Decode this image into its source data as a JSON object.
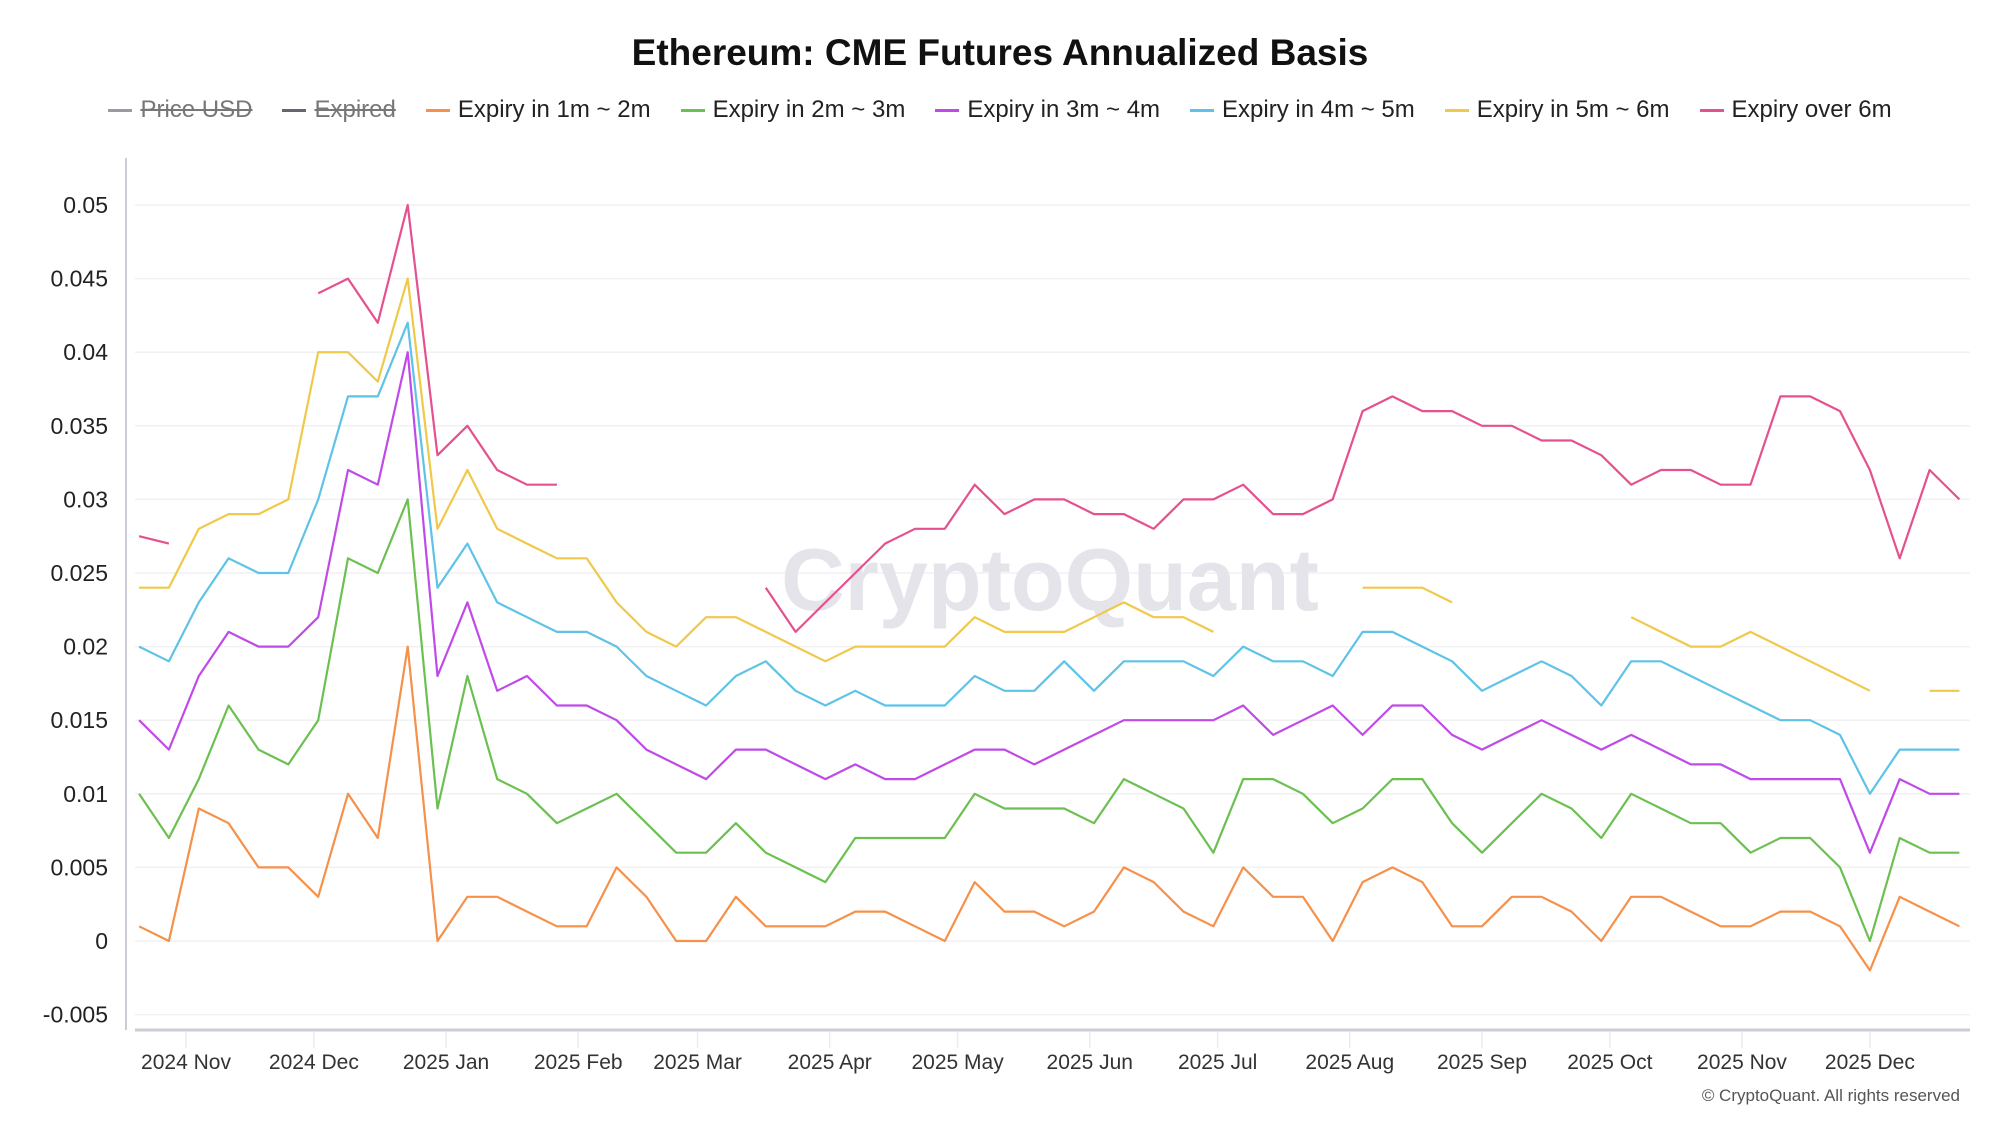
{
  "title": "Ethereum: CME Futures Annualized Basis",
  "legend": [
    {
      "label": "Price USD",
      "color": "#9a9aa2",
      "disabled": true
    },
    {
      "label": "Expired",
      "color": "#666670",
      "disabled": true
    },
    {
      "label": "Expiry in 1m ~ 2m",
      "color": "#f5914b",
      "disabled": false
    },
    {
      "label": "Expiry in 2m ~ 3m",
      "color": "#6cc052",
      "disabled": false
    },
    {
      "label": "Expiry in 3m ~ 4m",
      "color": "#c04ae8",
      "disabled": false
    },
    {
      "label": "Expiry in 4m ~ 5m",
      "color": "#5ec3e6",
      "disabled": false
    },
    {
      "label": "Expiry in 5m ~ 6m",
      "color": "#f0c84a",
      "disabled": false
    },
    {
      "label": "Expiry over 6m",
      "color": "#e5508f",
      "disabled": false
    }
  ],
  "watermark": "CryptoQuant",
  "copyright": "© CryptoQuant. All rights reserved",
  "chart_data": {
    "type": "line",
    "title": "Ethereum: CME Futures Annualized Basis",
    "xlabel": "",
    "ylabel": "",
    "ylim": [
      -0.005,
      0.05
    ],
    "yticks": [
      "0.05",
      "0.045",
      "0.04",
      "0.035",
      "0.03",
      "0.025",
      "0.02",
      "0.015",
      "0.01",
      "0.005",
      "0",
      "-0.005"
    ],
    "xticks": [
      {
        "label": "2024 Nov",
        "date": "2024-11-01"
      },
      {
        "label": "2024 Dec",
        "date": "2024-12-01"
      },
      {
        "label": "2025 Jan",
        "date": "2025-01-01"
      },
      {
        "label": "2025 Feb",
        "date": "2025-02-01"
      },
      {
        "label": "2025 Mar",
        "date": "2025-03-01"
      },
      {
        "label": "2025 Apr",
        "date": "2025-04-01"
      },
      {
        "label": "2025 May",
        "date": "2025-05-01"
      },
      {
        "label": "2025 Jun",
        "date": "2025-06-01"
      },
      {
        "label": "2025 Jul",
        "date": "2025-07-01"
      },
      {
        "label": "2025 Aug",
        "date": "2025-08-01"
      },
      {
        "label": "2025 Sep",
        "date": "2025-09-01"
      },
      {
        "label": "2025 Oct",
        "date": "2025-10-01"
      },
      {
        "label": "2025 Nov",
        "date": "2025-11-01"
      },
      {
        "label": "2025 Dec",
        "date": "2025-12-01"
      }
    ],
    "grid": true,
    "legend_position": "top",
    "x": [
      "2024-10-21",
      "2024-10-28",
      "2024-11-04",
      "2024-11-11",
      "2024-11-18",
      "2024-11-25",
      "2024-12-02",
      "2024-12-09",
      "2024-12-16",
      "2024-12-23",
      "2024-12-30",
      "2025-01-06",
      "2025-01-13",
      "2025-01-20",
      "2025-01-27",
      "2025-02-03",
      "2025-02-10",
      "2025-02-17",
      "2025-02-24",
      "2025-03-03",
      "2025-03-10",
      "2025-03-17",
      "2025-03-24",
      "2025-03-31",
      "2025-04-07",
      "2025-04-14",
      "2025-04-21",
      "2025-04-28",
      "2025-05-05",
      "2025-05-12",
      "2025-05-19",
      "2025-05-26",
      "2025-06-02",
      "2025-06-09",
      "2025-06-16",
      "2025-06-23",
      "2025-06-30",
      "2025-07-07",
      "2025-07-14",
      "2025-07-21",
      "2025-07-28",
      "2025-08-04",
      "2025-08-11",
      "2025-08-18",
      "2025-08-25",
      "2025-09-01",
      "2025-09-08",
      "2025-09-15",
      "2025-09-22",
      "2025-09-29",
      "2025-10-06",
      "2025-10-13",
      "2025-10-20",
      "2025-10-27",
      "2025-11-03",
      "2025-11-10",
      "2025-11-17",
      "2025-11-24",
      "2025-12-01",
      "2025-12-08",
      "2025-12-15",
      "2025-12-22"
    ],
    "series": [
      {
        "name": "Expiry in 1m ~ 2m",
        "color": "#f5914b",
        "values": [
          0.001,
          0.0,
          0.009,
          0.008,
          0.005,
          0.005,
          0.003,
          0.01,
          0.007,
          0.02,
          0.0,
          0.003,
          0.003,
          0.002,
          0.001,
          0.001,
          0.005,
          0.003,
          0.0,
          0.0,
          0.003,
          0.001,
          0.001,
          0.001,
          0.002,
          0.002,
          0.001,
          0.0,
          0.004,
          0.002,
          0.002,
          0.001,
          0.002,
          0.005,
          0.004,
          0.002,
          0.001,
          0.005,
          0.003,
          0.003,
          0.0,
          0.004,
          0.005,
          0.004,
          0.001,
          0.001,
          0.003,
          0.003,
          0.002,
          0.0,
          0.003,
          0.003,
          0.002,
          0.001,
          0.001,
          0.002,
          0.002,
          0.001,
          -0.002,
          0.003,
          0.002,
          0.001
        ]
      },
      {
        "name": "Expiry in 2m ~ 3m",
        "color": "#6cc052",
        "values": [
          0.01,
          0.007,
          0.011,
          0.016,
          0.013,
          0.012,
          0.015,
          0.026,
          0.025,
          0.03,
          0.009,
          0.018,
          0.011,
          0.01,
          0.008,
          0.009,
          0.01,
          0.008,
          0.006,
          0.006,
          0.008,
          0.006,
          0.005,
          0.004,
          0.007,
          0.007,
          0.007,
          0.007,
          0.01,
          0.009,
          0.009,
          0.009,
          0.008,
          0.011,
          0.01,
          0.009,
          0.006,
          0.011,
          0.011,
          0.01,
          0.008,
          0.009,
          0.011,
          0.011,
          0.008,
          0.006,
          0.008,
          0.01,
          0.009,
          0.007,
          0.01,
          0.009,
          0.008,
          0.008,
          0.006,
          0.007,
          0.007,
          0.005,
          0.0,
          0.007,
          0.006,
          0.006
        ]
      },
      {
        "name": "Expiry in 3m ~ 4m",
        "color": "#c04ae8",
        "values": [
          0.015,
          0.013,
          0.018,
          0.021,
          0.02,
          0.02,
          0.022,
          0.032,
          0.031,
          0.04,
          0.018,
          0.023,
          0.017,
          0.018,
          0.016,
          0.016,
          0.015,
          0.013,
          0.012,
          0.011,
          0.013,
          0.013,
          0.012,
          0.011,
          0.012,
          0.011,
          0.011,
          0.012,
          0.013,
          0.013,
          0.012,
          0.013,
          0.014,
          0.015,
          0.015,
          0.015,
          0.015,
          0.016,
          0.014,
          0.015,
          0.016,
          0.014,
          0.016,
          0.016,
          0.014,
          0.013,
          0.014,
          0.015,
          0.014,
          0.013,
          0.014,
          0.013,
          0.012,
          0.012,
          0.011,
          0.011,
          0.011,
          0.011,
          0.006,
          0.011,
          0.01,
          0.01
        ]
      },
      {
        "name": "Expiry in 4m ~ 5m",
        "color": "#5ec3e6",
        "values": [
          0.02,
          0.019,
          0.023,
          0.026,
          0.025,
          0.025,
          0.03,
          0.037,
          0.037,
          0.042,
          0.024,
          0.027,
          0.023,
          0.022,
          0.021,
          0.021,
          0.02,
          0.018,
          0.017,
          0.016,
          0.018,
          0.019,
          0.017,
          0.016,
          0.017,
          0.016,
          0.016,
          0.016,
          0.018,
          0.017,
          0.017,
          0.019,
          0.017,
          0.019,
          0.019,
          0.019,
          0.018,
          0.02,
          0.019,
          0.019,
          0.018,
          0.021,
          0.021,
          0.02,
          0.019,
          0.017,
          0.018,
          0.019,
          0.018,
          0.016,
          0.019,
          0.019,
          0.018,
          0.017,
          0.016,
          0.015,
          0.015,
          0.014,
          0.01,
          0.013,
          0.013,
          0.013
        ]
      },
      {
        "name": "Expiry in 5m ~ 6m",
        "color": "#f0c84a",
        "values": [
          0.024,
          0.024,
          0.028,
          0.029,
          0.029,
          0.03,
          0.04,
          0.04,
          0.038,
          0.045,
          0.028,
          0.032,
          0.028,
          0.027,
          0.026,
          0.026,
          0.023,
          0.021,
          0.02,
          0.022,
          0.022,
          0.021,
          0.02,
          0.019,
          0.02,
          0.02,
          0.02,
          0.02,
          0.022,
          0.021,
          0.021,
          0.021,
          0.022,
          0.023,
          0.022,
          0.022,
          0.021,
          null,
          null,
          null,
          null,
          0.024,
          0.024,
          0.024,
          0.023,
          null,
          null,
          null,
          null,
          null,
          0.022,
          0.021,
          0.02,
          0.02,
          0.021,
          0.02,
          0.019,
          0.018,
          0.017,
          null,
          0.017,
          0.017
        ]
      },
      {
        "name": "Expiry over 6m",
        "color": "#e5508f",
        "values": [
          0.0275,
          0.027,
          null,
          null,
          null,
          null,
          0.044,
          0.045,
          0.042,
          0.05,
          0.033,
          0.035,
          0.032,
          0.031,
          0.031,
          null,
          null,
          null,
          null,
          null,
          null,
          0.024,
          0.021,
          0.023,
          0.025,
          0.027,
          0.028,
          0.028,
          0.031,
          0.029,
          0.03,
          0.03,
          0.029,
          0.029,
          0.028,
          0.03,
          0.03,
          0.031,
          0.029,
          0.029,
          0.03,
          0.036,
          0.037,
          0.036,
          0.036,
          0.035,
          0.035,
          0.034,
          0.034,
          0.033,
          0.031,
          0.032,
          0.032,
          0.031,
          0.031,
          0.037,
          0.037,
          0.036,
          0.032,
          0.026,
          0.032,
          0.03
        ]
      }
    ]
  }
}
